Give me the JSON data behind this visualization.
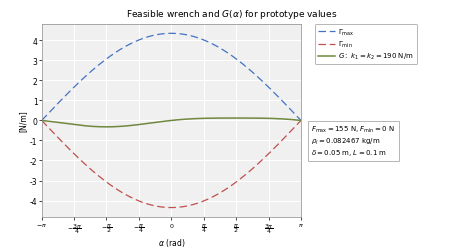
{
  "title": "Feasible wrench and $G(\\alpha)$ for prototype values",
  "xlabel": "$\\alpha$ (rad)",
  "ylabel": "[N/m]",
  "xlim": [
    -3.14159265,
    3.14159265
  ],
  "ylim": [
    -4.8,
    4.8
  ],
  "yticks": [
    -4,
    -3,
    -2,
    -1,
    0,
    1,
    2,
    3,
    4
  ],
  "legend_entries": [
    "$\\Gamma_{\\mathrm{max}}$",
    "$\\Gamma_{\\mathrm{min}}$",
    "$G:\\; k_1 = k_2 = 190$ N/m"
  ],
  "line_colors": [
    "#4472C4",
    "#C0504D",
    "#70883F"
  ],
  "background_color": "#F0F0F0",
  "grid_color": "#FFFFFF",
  "amp_gamma": 4.35,
  "F_max": 155,
  "F_min": 0,
  "rho_l": 0.082467,
  "delta": 0.05,
  "L": 0.1,
  "k": 190
}
